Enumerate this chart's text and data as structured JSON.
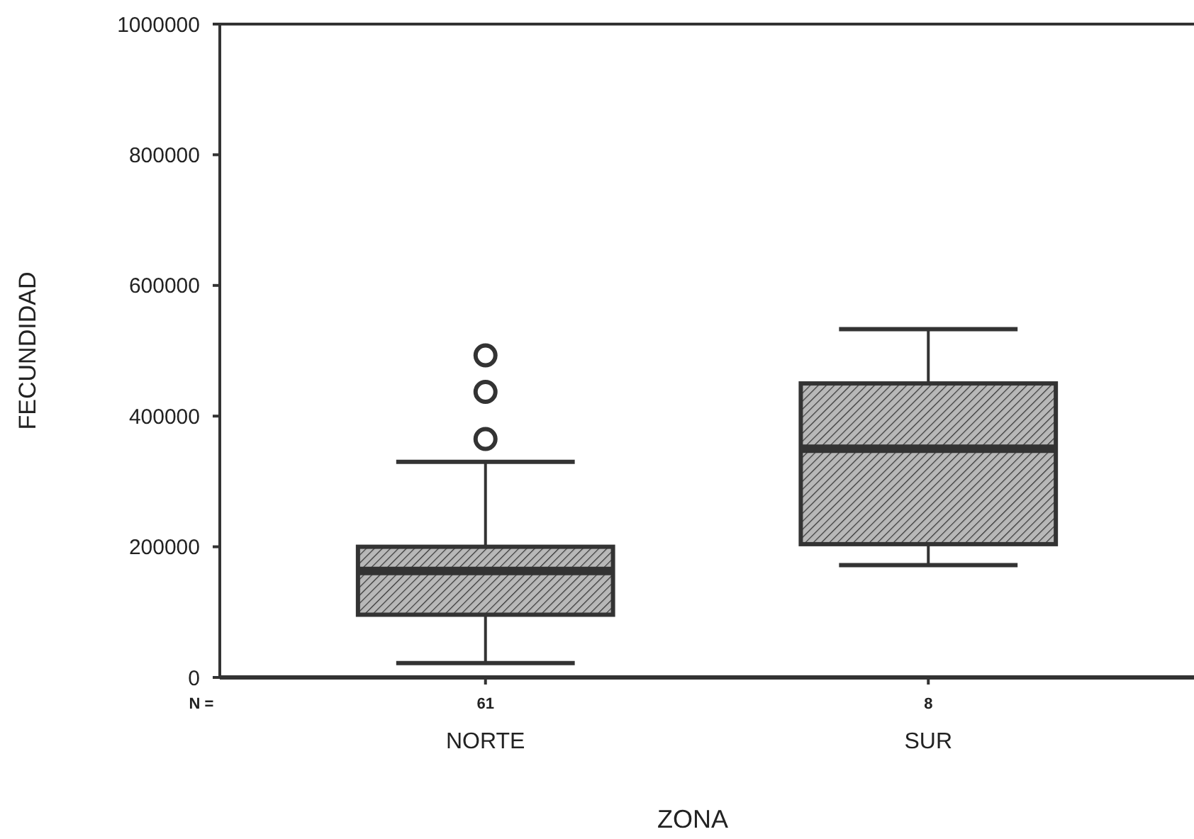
{
  "chart_data": {
    "type": "box",
    "xlabel": "ZONA",
    "ylabel": "FECUNDIDAD",
    "categories": [
      "NORTE",
      "SUR"
    ],
    "boxes": [
      {
        "low": 22000,
        "q1": 96000,
        "median": 163000,
        "q3": 200000,
        "high": 330000,
        "outliers": [
          365000,
          437000,
          493000
        ]
      },
      {
        "low": 172000,
        "q1": 204000,
        "median": 350000,
        "q3": 450000,
        "high": 533000
      }
    ],
    "color": "#333333",
    "ylim": [
      0,
      1000000
    ],
    "yticks": [
      0,
      200000,
      400000,
      600000,
      800000,
      1000000
    ],
    "annotations": [
      "N =",
      "61",
      "8"
    ]
  }
}
